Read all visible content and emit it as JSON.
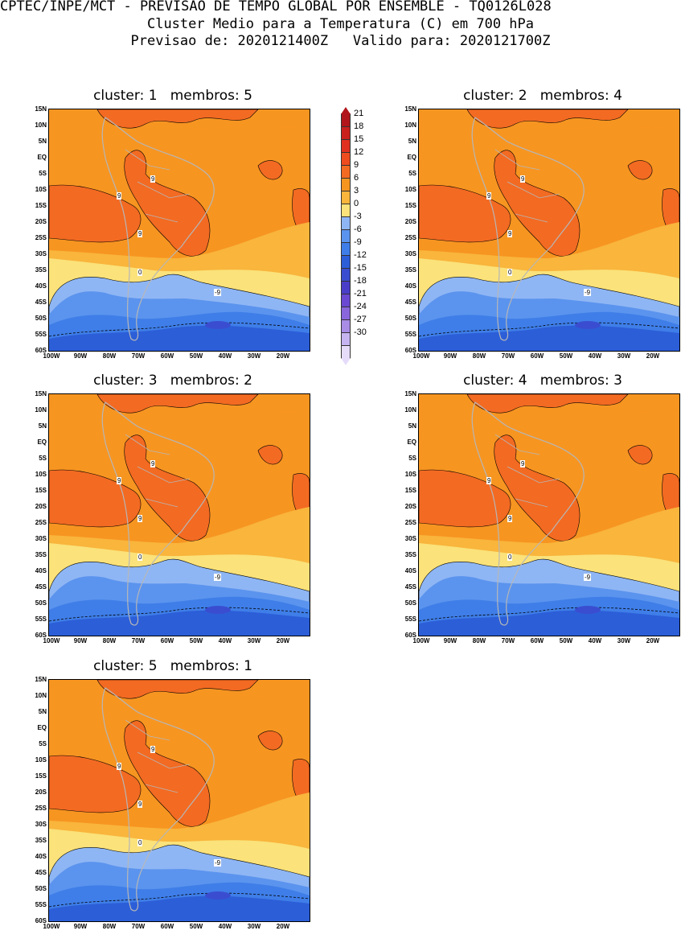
{
  "header": {
    "line1": "CPTEC/INPE/MCT - PREVISAO DE TEMPO GLOBAL POR ENSEMBLE - TQ0126L028",
    "line2": "Cluster Medio para a Temperatura (C) em 700 hPa",
    "line3": "Previsao de: 2020121400Z   Valido para: 2020121700Z"
  },
  "panels": [
    {
      "title": "cluster: 1   membros: 5"
    },
    {
      "title": "cluster: 2   membros: 4"
    },
    {
      "title": "cluster: 3   membros: 2"
    },
    {
      "title": "cluster: 4   membros: 3"
    },
    {
      "title": "cluster: 5   membros: 1"
    }
  ],
  "axes": {
    "lat_labels": [
      "15N",
      "10N",
      "5N",
      "EQ",
      "5S",
      "10S",
      "15S",
      "20S",
      "25S",
      "30S",
      "35S",
      "40S",
      "45S",
      "50S",
      "55S",
      "60S"
    ],
    "lon_labels": [
      "100W",
      "90W",
      "80W",
      "70W",
      "60W",
      "50W",
      "40W",
      "30W",
      "20W"
    ]
  },
  "contour_labels": {
    "warm": "9",
    "zero": "0",
    "cold": "-9"
  },
  "colorbar": {
    "labels": [
      "21",
      "18",
      "15",
      "12",
      "9",
      "6",
      "3",
      "0",
      "-3",
      "-6",
      "-9",
      "-12",
      "-15",
      "-18",
      "-21",
      "-24",
      "-27",
      "-30"
    ],
    "colors": [
      "#b0161b",
      "#c9201e",
      "#e0301f",
      "#ee4b1e",
      "#f36a22",
      "#f79521",
      "#f9b53c",
      "#fbe27a",
      "#8fb6f4",
      "#5b94ee",
      "#3f7ee8",
      "#2c5ed8",
      "#3a4dd0",
      "#4a3dc8",
      "#6a48d2",
      "#8a66dc",
      "#a88ce6",
      "#c6b4f0",
      "#e6dcfa"
    ]
  },
  "map_colors": {
    "c12": "#ee4b1e",
    "c9": "#f36a22",
    "c6": "#f79521",
    "c3": "#f9b53c",
    "c0": "#fbe27a",
    "cm3": "#8fb6f4",
    "cm6": "#5b94ee",
    "cm9": "#3f7ee8",
    "cm12": "#2c5ed8",
    "cm15": "#3a4dd0",
    "land": "#b7b7b7"
  }
}
